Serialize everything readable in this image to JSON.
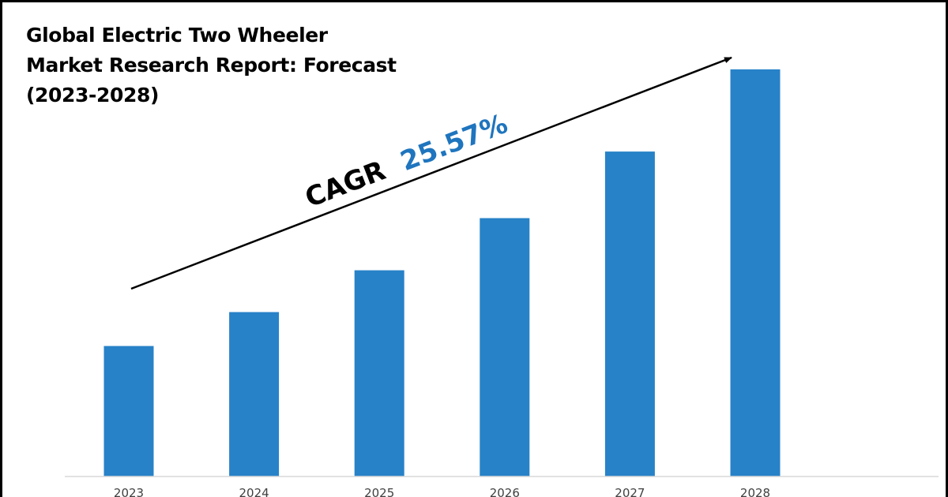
{
  "chart_data": {
    "type": "bar",
    "title_lines": [
      "Global Electric Two Wheeler",
      "Market Research Report: Forecast",
      "(2023-2028)"
    ],
    "categories": [
      "2023",
      "2024",
      "2025",
      "2026",
      "2027",
      "2028"
    ],
    "values": [
      1.0,
      1.26,
      1.58,
      1.98,
      2.49,
      3.12
    ],
    "ylim": [
      0,
      3.5
    ],
    "grid": false,
    "bar_color": "#2782C8",
    "annotation": {
      "label": "CAGR",
      "value": "25.57%",
      "label_color": "#000000",
      "value_color": "#1F75BE"
    }
  }
}
